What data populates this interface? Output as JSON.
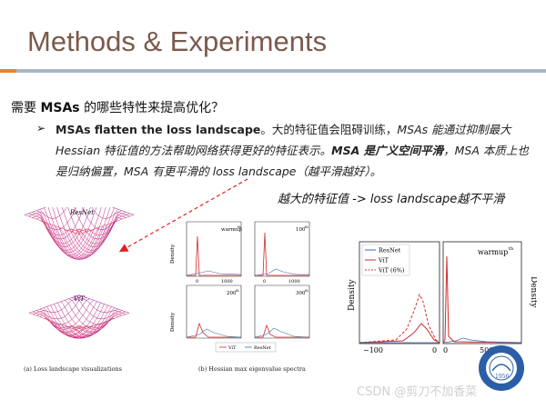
{
  "slide": {
    "title": "Methods & Experiments",
    "question_prefix": "需要 ",
    "question_bold": "MSAs",
    "question_suffix": " 的哪些特性来提高优化？",
    "bullet": {
      "lead_bold": "MSAs flatten the loss landscape",
      "p1": "。大的特征值会阻碍训练，",
      "p2_italic": "MSAs 能通过抑制最大Hessian 特征值的方法帮助网络获得更好的特征表示。",
      "p3_bold_italic": "MSA 是广义空间平滑",
      "p4_italic": "，MSA 本质上也是归纳偏置，MSA 有更平滑的 loss landscape（越平滑越好）。"
    },
    "annotation": "越大的特征值  ->  loss landscape越不平滑"
  },
  "figure_a": {
    "label_top": "ResNet",
    "label_bottom": "ViT",
    "caption": "(a) Loss landscape visualizations"
  },
  "figure_b": {
    "caption": "(b) Hessian max eigenvalue spectra",
    "panels": [
      {
        "tag": "warmup",
        "tag_sup": "th"
      },
      {
        "tag": "100",
        "tag_sup": "th"
      },
      {
        "tag": "200",
        "tag_sup": "th"
      },
      {
        "tag": "300",
        "tag_sup": "th"
      }
    ],
    "ylabel": "Density",
    "xticks": [
      "0",
      "1000"
    ],
    "legend": [
      "ViT",
      "ResNet"
    ]
  },
  "figure_c": {
    "ylabel": "Density",
    "legend": [
      "ResNet",
      "ViT",
      "ViT (6%)"
    ],
    "tag": "warmup",
    "tag_sup": "th",
    "xticks_left": [
      "−100",
      "0"
    ],
    "xticks_right": [
      "0",
      "500"
    ],
    "colors": {
      "resnet": "#3a6fb0",
      "vit": "#d42a2a"
    }
  },
  "watermark": "CSDN @剪刀不加香菜",
  "seal": {
    "year": "1956"
  }
}
